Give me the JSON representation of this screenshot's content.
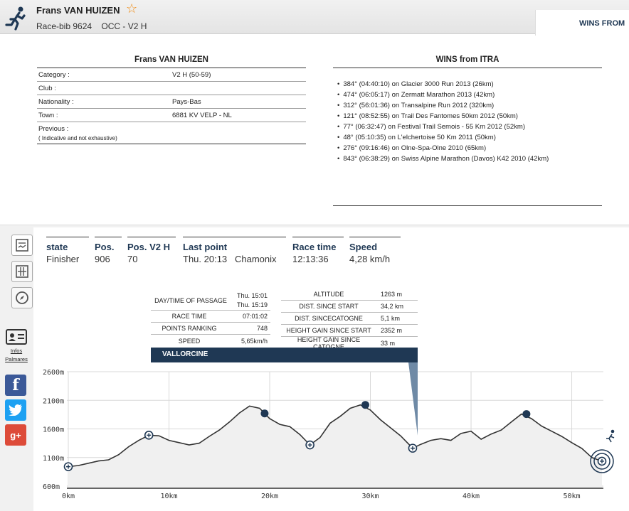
{
  "header": {
    "name": "Frans VAN HUIZEN",
    "bib": "Race-bib 9624",
    "race": "OCC - V2 H",
    "wins_tab": "WINS FROM"
  },
  "info": {
    "title": "Frans VAN HUIZEN",
    "rows": [
      {
        "label": "Category :",
        "value": "V2 H (50-59)"
      },
      {
        "label": "Club :",
        "value": ""
      },
      {
        "label": "Nationality :",
        "value": "Pays-Bas"
      },
      {
        "label": "Town :",
        "value": "6881 KV VELP - NL"
      },
      {
        "label": "Previous :",
        "value": ""
      }
    ],
    "note": "( Indicative and not exhaustive)"
  },
  "wins": {
    "title": "WINS from ITRA",
    "items": [
      "384° (04:40:10) on Glacier 3000 Run 2013 (26km)",
      "474° (06:05:17) on Zermatt Marathon 2013 (42km)",
      "312° (56:01:36) on Transalpine Run 2012 (320km)",
      "121° (08:52:55) on Trail Des Fantomes 50km 2012 (50km)",
      "77° (06:32:47) on Festival Trail Semois - 55 Km 2012 (52km)",
      "48° (05:10:35) on L'elchertoise 50 Km 2011 (50km)",
      "276° (09:16:46) on Olne-Spa-Olne 2010 (65km)",
      "843° (06:38:29) on Swiss Alpine Marathon (Davos) K42 2010 (42km)"
    ]
  },
  "sidebar": {
    "infos": "Infos",
    "palmares": "Palmares"
  },
  "status": {
    "state_label": "state",
    "state": "Finisher",
    "pos_label": "Pos.",
    "pos": "906",
    "posv2_label": "Pos. V2 H",
    "posv2": "70",
    "last_label": "Last point",
    "last_time": "Thu. 20:13",
    "last_place": "Chamonix",
    "racetime_label": "Race time",
    "racetime": "12:13:36",
    "speed_label": "Speed",
    "speed": "4,28 km/h"
  },
  "tooltip": {
    "passage_label": "DAY/TIME OF PASSAGE",
    "passage_1": "Thu. 15:01",
    "passage_2": "Thu. 15:19",
    "racetime_label": "RACE TIME",
    "racetime": "07:01:02",
    "points_label": "POINTS RANKING",
    "points": "748",
    "speed_label": "SPEED",
    "speed": "5,65km/h",
    "altitude_label": "ALTITUDE",
    "altitude": "1263 m",
    "dist_start_label": "DIST. SINCE START",
    "dist_start": "34,2 km",
    "dist_cp_label": "DIST. SINCECATOGNE",
    "dist_cp": "5,1 km",
    "gain_start_label": "HEIGHT GAIN SINCE START",
    "gain_start": "2352 m",
    "gain_cp_label": "HEIGHT GAIN SINCE CATOGNE",
    "gain_cp": "33 m",
    "place": "VALLORCINE"
  },
  "chart_data": {
    "type": "line",
    "xlabel": "",
    "ylabel": "",
    "xlim": [
      0,
      53
    ],
    "ylim": [
      600,
      2600
    ],
    "x_ticks": [
      "0km",
      "10km",
      "20km",
      "30km",
      "40km",
      "50km"
    ],
    "y_ticks": [
      "2600m",
      "2100m",
      "1600m",
      "1100m",
      "600m"
    ],
    "profile": [
      [
        0,
        940
      ],
      [
        1,
        960
      ],
      [
        2,
        1000
      ],
      [
        3,
        1040
      ],
      [
        4,
        1060
      ],
      [
        5,
        1150
      ],
      [
        6,
        1290
      ],
      [
        7,
        1400
      ],
      [
        8,
        1490
      ],
      [
        9,
        1480
      ],
      [
        10,
        1400
      ],
      [
        11,
        1360
      ],
      [
        12,
        1320
      ],
      [
        13,
        1350
      ],
      [
        14,
        1470
      ],
      [
        15,
        1580
      ],
      [
        16,
        1720
      ],
      [
        17,
        1880
      ],
      [
        18,
        2000
      ],
      [
        19,
        1960
      ],
      [
        20,
        1780
      ],
      [
        21,
        1680
      ],
      [
        22,
        1640
      ],
      [
        23,
        1500
      ],
      [
        24,
        1320
      ],
      [
        25,
        1450
      ],
      [
        26,
        1700
      ],
      [
        27,
        1820
      ],
      [
        28,
        1960
      ],
      [
        29,
        2020
      ],
      [
        30,
        1930
      ],
      [
        31,
        1760
      ],
      [
        32,
        1620
      ],
      [
        33,
        1480
      ],
      [
        34.2,
        1263
      ],
      [
        35,
        1330
      ],
      [
        36,
        1400
      ],
      [
        37,
        1430
      ],
      [
        38,
        1400
      ],
      [
        39,
        1520
      ],
      [
        40,
        1560
      ],
      [
        41,
        1420
      ],
      [
        42,
        1510
      ],
      [
        43,
        1580
      ],
      [
        44,
        1720
      ],
      [
        45,
        1860
      ],
      [
        46,
        1780
      ],
      [
        47,
        1650
      ],
      [
        48,
        1560
      ],
      [
        49,
        1470
      ],
      [
        50,
        1360
      ],
      [
        51,
        1260
      ],
      [
        52,
        1100
      ],
      [
        53,
        1035
      ]
    ],
    "checkpoints_passed": [
      [
        0,
        940
      ],
      [
        8,
        1490
      ],
      [
        24,
        1320
      ],
      [
        34.2,
        1263
      ],
      [
        53,
        1035
      ]
    ],
    "summits": [
      [
        19.5,
        1870
      ],
      [
        29.5,
        2020
      ],
      [
        45.5,
        1860
      ]
    ],
    "selected_point": [
      34.2,
      1263
    ]
  }
}
